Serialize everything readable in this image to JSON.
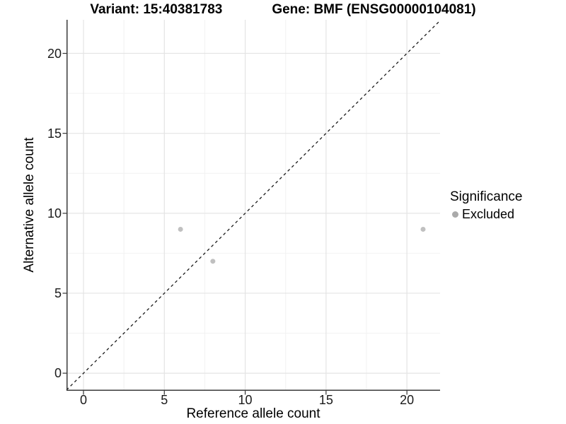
{
  "chart_data": {
    "type": "scatter",
    "title_left": "Variant: 15:40381783",
    "title_right": "Gene: BMF (ENSG00000104081)",
    "xlabel": "Reference allele count",
    "ylabel": "Alternative allele count",
    "xlim": [
      -1.05,
      22.05
    ],
    "ylim": [
      -1.1,
      22.1
    ],
    "x_ticks": [
      0,
      5,
      10,
      15,
      20
    ],
    "y_ticks": [
      0,
      5,
      10,
      15,
      20
    ],
    "x_minor_ticks": [
      2.5,
      7.5,
      12.5,
      17.5
    ],
    "y_minor_ticks": [
      2.5,
      7.5,
      12.5,
      17.5
    ],
    "grid": true,
    "series": [
      {
        "name": "Excluded",
        "color": "#c0c0c0",
        "point_radius": 3.5,
        "points": [
          [
            6,
            9
          ],
          [
            8,
            7
          ],
          [
            21,
            9
          ]
        ]
      }
    ],
    "reference_line": {
      "type": "identity",
      "style": "dashed",
      "color": "#1a1a1a"
    },
    "legend": {
      "position": "right",
      "title": "Significance",
      "entries": [
        {
          "label": "Excluded",
          "color": "#aaaaaa"
        }
      ]
    },
    "style": {
      "background": "#ffffff",
      "grid_major_color": "#e4e4e4",
      "grid_minor_color": "#f2f2f2",
      "axis_line_color": "#3a3a3a",
      "tick_mark_color": "#333333",
      "tick_label_color": "#1a1a1a"
    }
  }
}
